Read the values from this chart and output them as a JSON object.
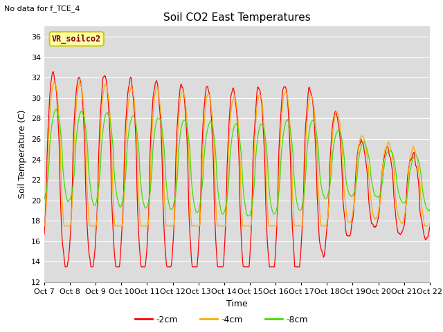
{
  "title": "Soil CO2 East Temperatures",
  "subtitle": "No data for f_TCE_4",
  "xlabel": "Time",
  "ylabel": "Soil Temperature (C)",
  "ylim": [
    12,
    37
  ],
  "yticks": [
    12,
    14,
    16,
    18,
    20,
    22,
    24,
    26,
    28,
    30,
    32,
    34,
    36
  ],
  "xtick_labels": [
    "Oct 7",
    "Oct 8",
    "Oct 9",
    "Oct 10",
    "Oct 11",
    "Oct 12",
    "Oct 13",
    "Oct 14",
    "Oct 15",
    "Oct 16",
    "Oct 17",
    "Oct 18",
    "Oct 19",
    "Oct 20",
    "Oct 21",
    "Oct 22"
  ],
  "bg_color": "#dcdcdc",
  "fig_color": "#ffffff",
  "series": {
    "neg2cm": {
      "color": "#ff0000",
      "label": "-2cm"
    },
    "neg4cm": {
      "color": "#ffaa00",
      "label": "-4cm"
    },
    "neg8cm": {
      "color": "#44dd00",
      "label": "-8cm"
    }
  },
  "legend_box_facecolor": "#ffffaa",
  "legend_box_edgecolor": "#cccc00",
  "legend_box_text": "VR_soilco2",
  "legend_box_textcolor": "#880000",
  "num_days": 15,
  "points_per_day": 48,
  "title_fontsize": 11,
  "axis_label_fontsize": 9,
  "tick_fontsize": 8
}
